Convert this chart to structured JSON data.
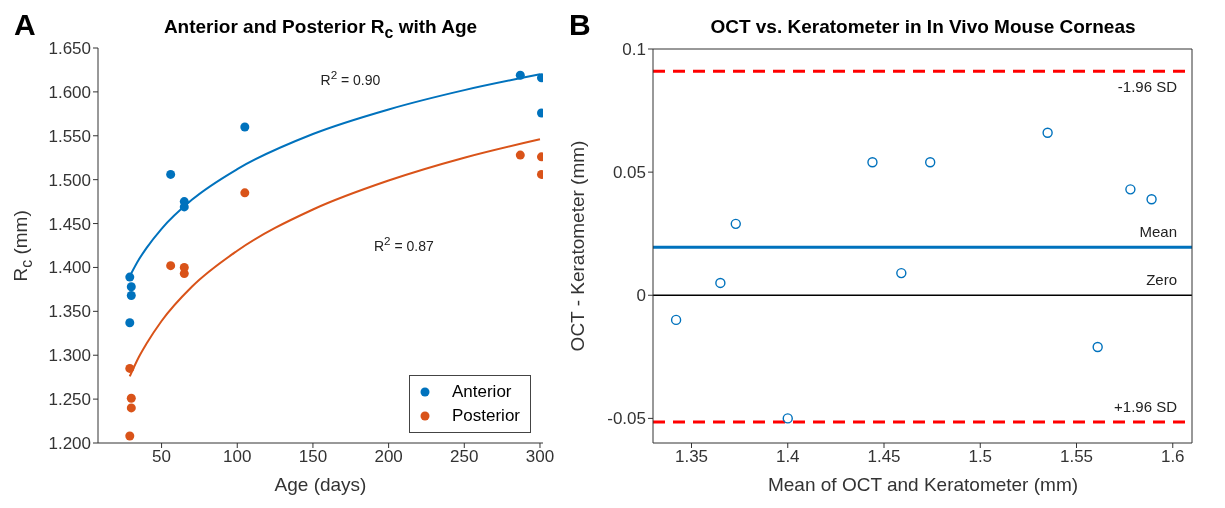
{
  "chart_data": [
    {
      "type": "scatter",
      "title": "Anterior and Posterior R$_{c}$ with Age",
      "xlabel": "Age (days)",
      "ylabel": "R$_{c}$ (mm)",
      "annotations": [
        "A",
        "R$^{2}$ = 0.90",
        "R$^{2}$ = 0.87"
      ],
      "xlim": [
        8,
        302
      ],
      "xticks": [
        50,
        100,
        150,
        200,
        250,
        300
      ],
      "ylim": [
        1.2,
        1.65
      ],
      "yticks": [
        {
          "value": 1.2,
          "label": "1.200"
        },
        {
          "value": 1.25,
          "label": "1.250"
        },
        {
          "value": 1.3,
          "label": "1.300"
        },
        {
          "value": 1.35,
          "label": "1.350"
        },
        {
          "value": 1.4,
          "label": "1.400"
        },
        {
          "value": 1.45,
          "label": "1.450"
        },
        {
          "value": 1.5,
          "label": "1.500"
        },
        {
          "value": 1.55,
          "label": "1.550"
        },
        {
          "value": 1.6,
          "label": "1.600"
        },
        {
          "value": 1.65,
          "label": "1.650"
        }
      ],
      "legend": "bottom right",
      "series": [
        {
          "name": "Anterior",
          "marker": "circle",
          "color": "#0072bd",
          "x": [
            29,
            30,
            30,
            29,
            56,
            65,
            65,
            105,
            287,
            301,
            301
          ],
          "values": [
            1.389,
            1.378,
            1.368,
            1.337,
            1.506,
            1.475,
            1.469,
            1.56,
            1.619,
            1.616,
            1.576
          ]
        },
        {
          "name": "Posterior",
          "marker": "circle",
          "color": "#d95319",
          "x": [
            29,
            30,
            30,
            29,
            56,
            65,
            65,
            105,
            287,
            301,
            301
          ],
          "values": [
            1.285,
            1.251,
            1.24,
            1.208,
            1.402,
            1.4,
            1.393,
            1.485,
            1.528,
            1.526,
            1.506
          ]
        },
        {
          "type": "line",
          "color": "#0072bd",
          "x": [
            29,
            35,
            40,
            50,
            70,
            100,
            150,
            200,
            250,
            300
          ],
          "values": [
            1.39,
            1.409,
            1.422,
            1.444,
            1.477,
            1.512,
            1.552,
            1.58,
            1.602,
            1.62
          ]
        },
        {
          "type": "line",
          "color": "#d95319",
          "x": [
            29,
            35,
            40,
            50,
            70,
            100,
            150,
            200,
            250,
            300
          ],
          "values": [
            1.276,
            1.298,
            1.313,
            1.339,
            1.378,
            1.419,
            1.466,
            1.499,
            1.525,
            1.546
          ]
        }
      ]
    },
    {
      "type": "scatter",
      "title": "OCT vs. Keratometer in In Vivo Mouse Corneas",
      "xlabel": "Mean of OCT and Keratometer (mm)",
      "ylabel": "OCT - Keratometer (mm)",
      "annotations": [
        "B"
      ],
      "xlim": [
        1.33,
        1.61
      ],
      "xticks": [
        1.35,
        1.4,
        1.45,
        1.5,
        1.55,
        1.6
      ],
      "ylim": [
        -0.06,
        0.1
      ],
      "yticks": [
        -0.05,
        0,
        0.05,
        0.1
      ],
      "legend": false,
      "marker": "circle",
      "series": [
        {
          "color": "#0072bd",
          "x": [
            1.342,
            1.365,
            1.373,
            1.4,
            1.444,
            1.459,
            1.474,
            1.535,
            1.561,
            1.578,
            1.589
          ],
          "values": [
            -0.01,
            0.005,
            0.029,
            -0.05,
            0.054,
            0.009,
            0.054,
            0.066,
            -0.021,
            0.043,
            0.039
          ]
        }
      ],
      "ref_lines": [
        {
          "axis": "y",
          "value": 0.091,
          "label": "-1.96 SD",
          "color": "#ff0000",
          "line_style": "dashed"
        },
        {
          "axis": "y",
          "value": 0.0195,
          "label": "Mean",
          "color": "#0072bd",
          "line_style": "solid"
        },
        {
          "axis": "y",
          "value": 0,
          "label": "Zero",
          "color": "#000000",
          "line_style": "solid"
        },
        {
          "axis": "y",
          "value": -0.0515,
          "label": "+1.96 SD",
          "color": "#ff0000",
          "line_style": "dashed"
        }
      ]
    }
  ]
}
